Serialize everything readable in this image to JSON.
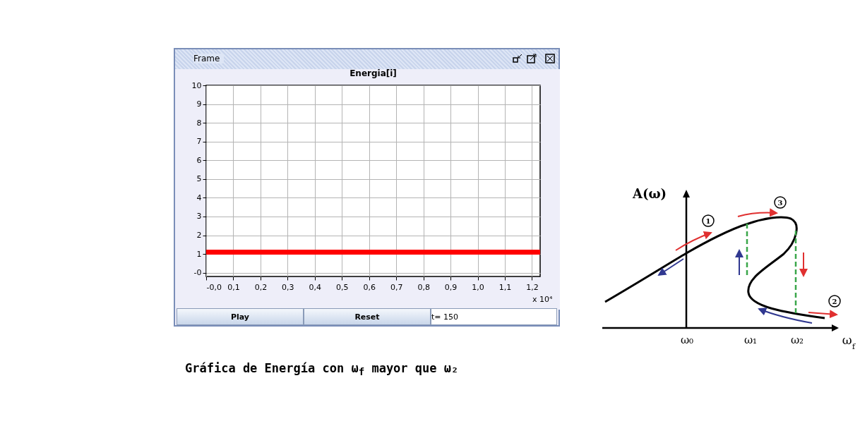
{
  "chart_data": [
    {
      "type": "line",
      "title": "Energia[i]",
      "x": [
        0,
        1.23
      ],
      "series": [
        {
          "color": "#ff0000",
          "values": [
            1.1,
            1.1
          ]
        }
      ],
      "xlim": [
        0,
        1.23
      ],
      "xticks": [
        {
          "value": 0,
          "label": "-0,0"
        },
        {
          "value": 0.1,
          "label": "0,1"
        },
        {
          "value": 0.2,
          "label": "0,2"
        },
        {
          "value": 0.3,
          "label": "0,3"
        },
        {
          "value": 0.4,
          "label": "0,4"
        },
        {
          "value": 0.5,
          "label": "0,5"
        },
        {
          "value": 0.6,
          "label": "0,6"
        },
        {
          "value": 0.7,
          "label": "0,7"
        },
        {
          "value": 0.8,
          "label": "0,8"
        },
        {
          "value": 0.9,
          "label": "0,9"
        },
        {
          "value": 1.0,
          "label": "1,0"
        },
        {
          "value": 1.1,
          "label": "1,1"
        },
        {
          "value": 1.2,
          "label": "1,2"
        }
      ],
      "ylim": [
        -0.2,
        10
      ],
      "yticks": [
        {
          "value": 0,
          "label": "-0"
        },
        1,
        2,
        3,
        4,
        5,
        6,
        7,
        8,
        9,
        10
      ],
      "grid": true,
      "annotations": [
        "Frame",
        "x 10⁴",
        "Play",
        "Reset",
        "t= 150",
        "Gráfica de Energía con ω$_{f}$ mayor que ω₂"
      ]
    },
    {
      "type": "other",
      "title": "A(ω)",
      "xlabel": "ω$_{f}$",
      "annotations": [
        "1",
        "3",
        "2",
        "ω₀",
        "ω₁",
        "ω₂"
      ]
    }
  ]
}
